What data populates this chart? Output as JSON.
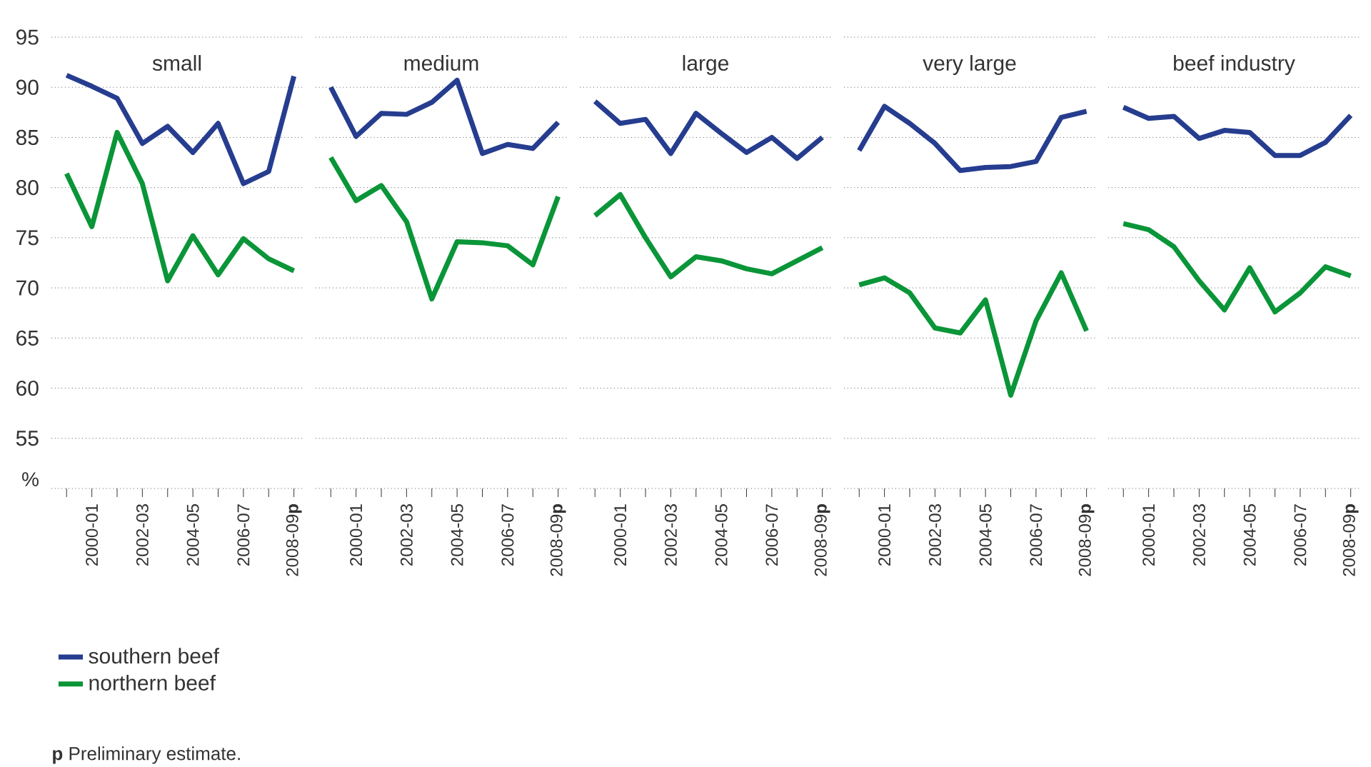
{
  "chart_data": [
    {
      "type": "line",
      "title": "small",
      "categories": [
        null,
        "2000-01",
        null,
        "2002-03",
        null,
        "2004-05",
        null,
        "2006-07",
        null,
        "2008-09**p**"
      ],
      "series": [
        {
          "name": "southern beef",
          "color": "#263d8f",
          "values": [
            91.2,
            90.1,
            88.9,
            84.4,
            86.1,
            83.5,
            86.4,
            80.4,
            81.6,
            91.1
          ]
        },
        {
          "name": "northern beef",
          "color": "#0a9538",
          "values": [
            81.4,
            76.1,
            85.5,
            80.4,
            70.7,
            75.2,
            71.3,
            74.9,
            72.9,
            71.7
          ]
        }
      ],
      "ylabel": "%",
      "ylim": [
        50,
        95
      ],
      "yticks": [
        55,
        60,
        65,
        70,
        75,
        80,
        85,
        90,
        95
      ],
      "grid": "y",
      "legend": "bottom",
      "annotations": [
        "**p** Preliminary estimate."
      ]
    },
    {
      "type": "line",
      "title": "medium",
      "categories": [
        null,
        "2000-01",
        null,
        "2002-03",
        null,
        "2004-05",
        null,
        "2006-07",
        null,
        "2008-09**p**"
      ],
      "series": [
        {
          "color": "#263d8f",
          "values": [
            90.0,
            85.1,
            87.4,
            87.3,
            88.5,
            90.7,
            83.4,
            84.3,
            83.9,
            86.5
          ]
        },
        {
          "color": "#0a9538",
          "values": [
            83.0,
            78.7,
            80.2,
            76.6,
            68.9,
            74.6,
            74.5,
            74.2,
            72.3,
            79.1
          ]
        }
      ],
      "ylim": [
        50,
        95
      ],
      "yticks": [
        55,
        60,
        65,
        70,
        75,
        80,
        85,
        90,
        95
      ],
      "grid": "y",
      "tick_labels": "x"
    },
    {
      "type": "line",
      "title": "large",
      "categories": [
        null,
        "2000-01",
        null,
        "2002-03",
        null,
        "2004-05",
        null,
        "2006-07",
        null,
        "2008-09**p**"
      ],
      "series": [
        {
          "color": "#263d8f",
          "values": [
            88.6,
            86.4,
            86.8,
            83.4,
            87.4,
            85.4,
            83.5,
            85.0,
            82.9,
            85.0
          ]
        },
        {
          "color": "#0a9538",
          "values": [
            77.2,
            79.3,
            75.0,
            71.1,
            73.1,
            72.7,
            71.9,
            71.4,
            72.7,
            74.0
          ]
        }
      ],
      "ylim": [
        50,
        95
      ],
      "yticks": [
        55,
        60,
        65,
        70,
        75,
        80,
        85,
        90,
        95
      ],
      "grid": "y",
      "tick_labels": "x"
    },
    {
      "type": "line",
      "title": "very large",
      "categories": [
        null,
        "2000-01",
        null,
        "2002-03",
        null,
        "2004-05",
        null,
        "2006-07",
        null,
        "2008-09**p**"
      ],
      "series": [
        {
          "color": "#263d8f",
          "values": [
            83.7,
            88.1,
            86.4,
            84.4,
            81.7,
            82.0,
            82.1,
            82.6,
            87.0,
            87.6
          ]
        },
        {
          "color": "#0a9538",
          "values": [
            70.3,
            71.0,
            69.5,
            66.0,
            65.5,
            68.8,
            59.3,
            66.7,
            71.5,
            65.7
          ]
        }
      ],
      "ylim": [
        50,
        95
      ],
      "yticks": [
        55,
        60,
        65,
        70,
        75,
        80,
        85,
        90,
        95
      ],
      "grid": "y",
      "tick_labels": "x"
    },
    {
      "type": "line",
      "title": "beef industry",
      "categories": [
        null,
        "2000-01",
        null,
        "2002-03",
        null,
        "2004-05",
        null,
        "2006-07",
        null,
        "2008-09**p**"
      ],
      "series": [
        {
          "color": "#263d8f",
          "values": [
            88.0,
            86.9,
            87.1,
            84.9,
            85.7,
            85.5,
            83.2,
            83.2,
            84.5,
            87.2
          ]
        },
        {
          "color": "#0a9538",
          "values": [
            76.4,
            75.8,
            74.1,
            70.7,
            67.8,
            72.0,
            67.6,
            69.5,
            72.1,
            71.2
          ]
        }
      ],
      "ylim": [
        50,
        95
      ],
      "yticks": [
        55,
        60,
        65,
        70,
        75,
        80,
        85,
        90,
        95
      ],
      "grid": "y",
      "tick_labels": "x"
    }
  ]
}
